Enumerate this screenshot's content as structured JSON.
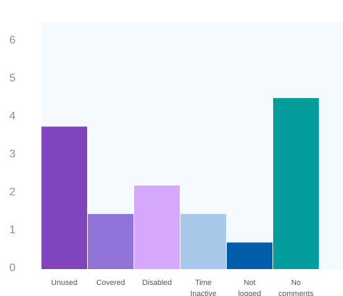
{
  "chart_data": {
    "type": "bar",
    "title": "",
    "xlabel": "",
    "ylabel": "",
    "ylim": [
      0,
      6.5
    ],
    "yticks": [
      0,
      1,
      2,
      3,
      4,
      5,
      6
    ],
    "grid": false,
    "plot_background": "#f5faff",
    "categories": [
      [
        "Unused"
      ],
      [
        "Covered"
      ],
      [
        "Disabled"
      ],
      [
        "Time",
        "Inactive"
      ],
      [
        "Not",
        "logged"
      ],
      [
        "No",
        "comments"
      ]
    ],
    "values": [
      3.75,
      1.45,
      2.2,
      1.45,
      0.7,
      4.5
    ],
    "colors": [
      "#8044be",
      "#9273da",
      "#d6a8fc",
      "#a7c8e8",
      "#025eab",
      "#029d9c"
    ]
  }
}
